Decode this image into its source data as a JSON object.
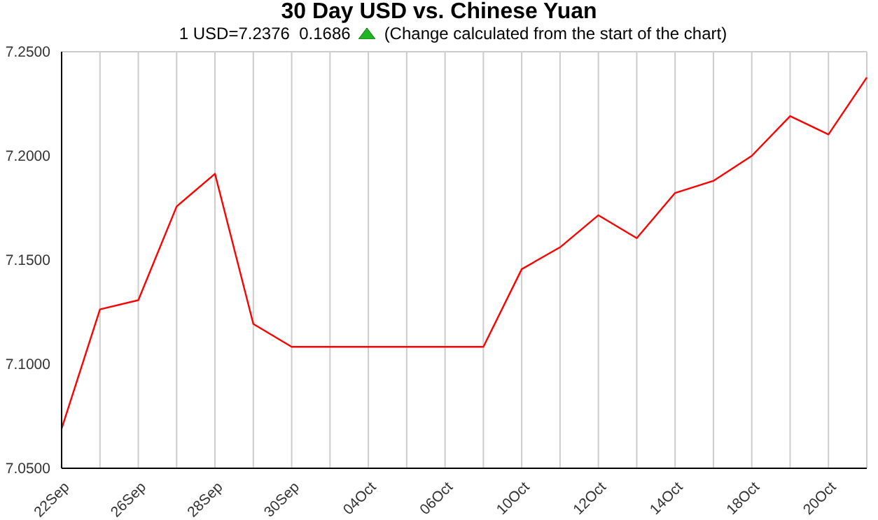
{
  "chart_data": {
    "type": "line",
    "title": "30 Day USD vs. Chinese Yuan",
    "subtitle": "1 USD=7.2376  0.1686",
    "annotations": [
      "(Change calculated from the start of the chart)"
    ],
    "categories": [
      "22Sep",
      null,
      "26Sep",
      null,
      "28Sep",
      null,
      "30Sep",
      null,
      "04Oct",
      null,
      "06Oct",
      null,
      "10Oct",
      null,
      "12Oct",
      null,
      "14Oct",
      null,
      "18Oct",
      null,
      "20Oct",
      null
    ],
    "series": [
      {
        "color": "#ff0000",
        "values": [
          7.069,
          7.1263,
          7.1307,
          7.1757,
          7.1914,
          7.1193,
          7.1083,
          7.1083,
          7.1083,
          7.1083,
          7.1083,
          7.1083,
          7.1456,
          7.1561,
          7.1715,
          7.1605,
          7.1822,
          7.188,
          7.2,
          7.2191,
          7.2103,
          7.2376
        ]
      }
    ],
    "ylim": [
      7.05,
      7.25
    ],
    "yticks": [
      {
        "value": 7.05,
        "label": "7.0500"
      },
      {
        "value": 7.1,
        "label": "7.1000"
      },
      {
        "value": 7.15,
        "label": "7.1500"
      },
      {
        "value": 7.2,
        "label": "7.2000"
      },
      {
        "value": 7.25,
        "label": "7.2500"
      }
    ],
    "grid": true
  }
}
